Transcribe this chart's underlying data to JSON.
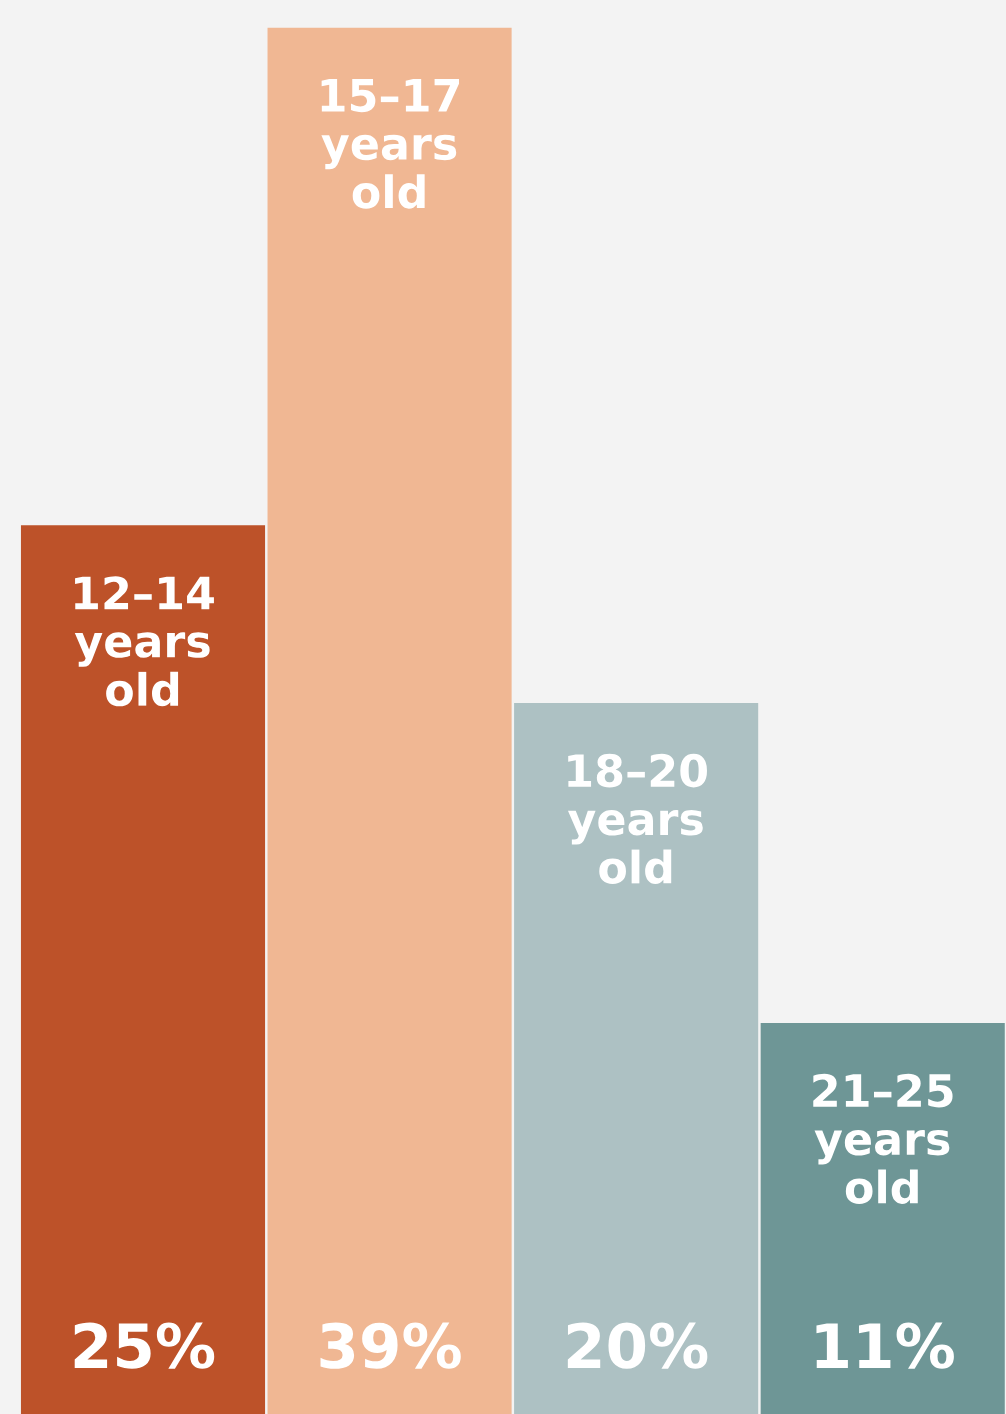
{
  "chart_data": {
    "type": "bar",
    "categories": [
      "12–14 years old",
      "15–17 years old",
      "18–20 years old",
      "21–25 years old"
    ],
    "values": [
      25,
      39,
      20,
      11
    ],
    "colors": [
      "#bd5229",
      "#f0b793",
      "#adc1c3",
      "#6e9696"
    ],
    "value_labels": [
      "25%",
      "39%",
      "20%",
      "11%"
    ],
    "legend": false
  }
}
